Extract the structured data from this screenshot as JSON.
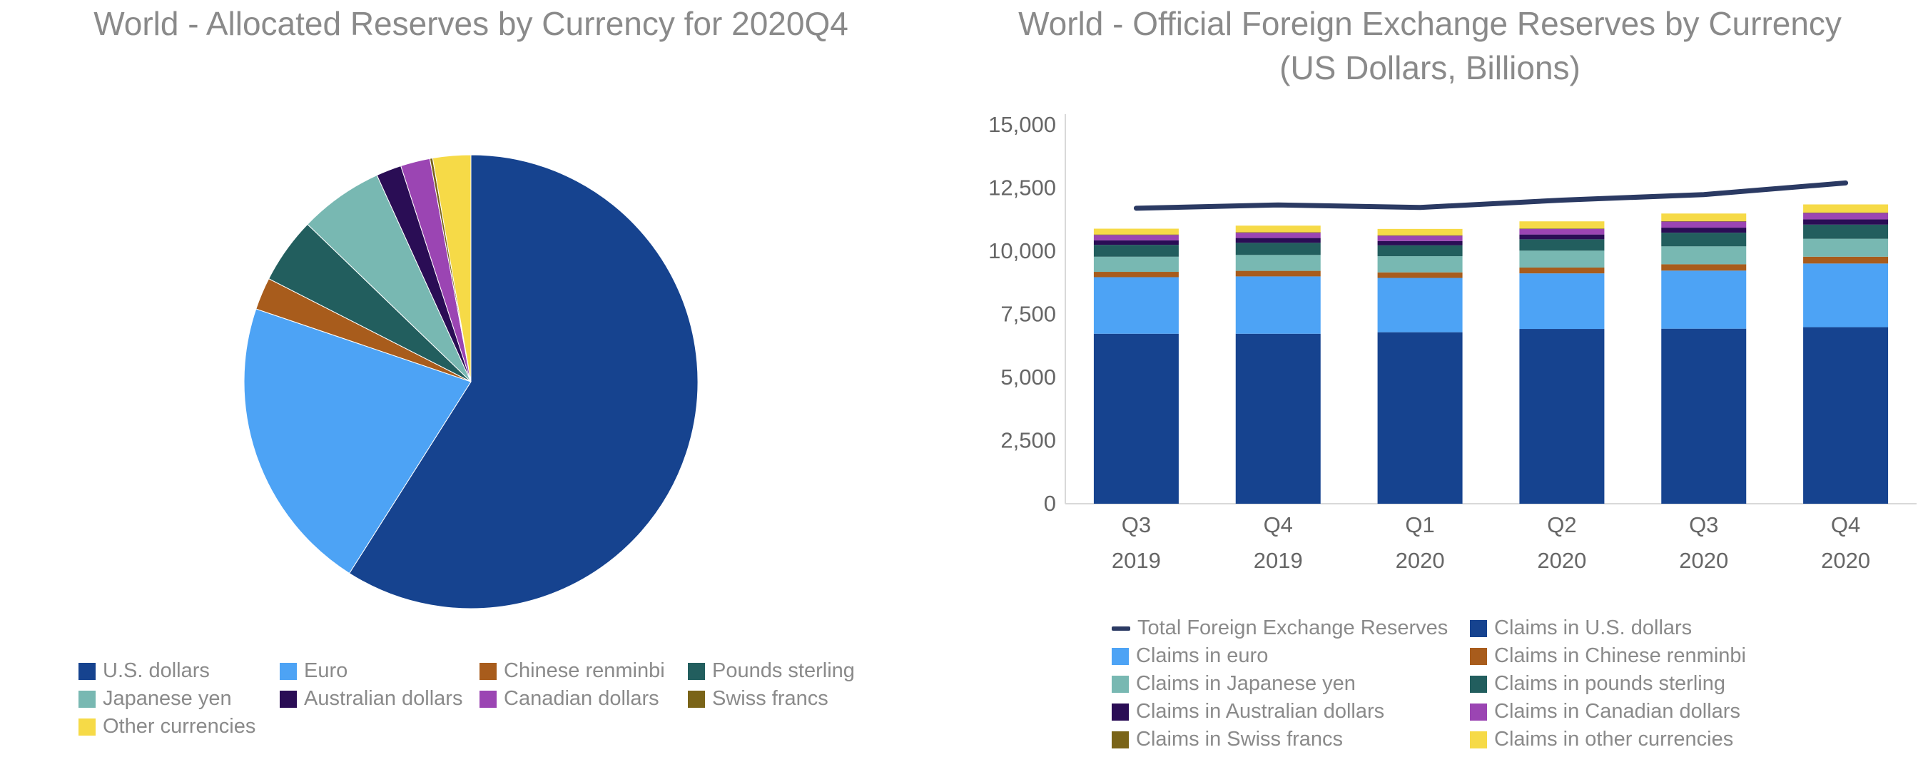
{
  "chart_data": [
    {
      "type": "pie",
      "title": "World - Allocated Reserves by Currency for 2020Q4",
      "categories": [
        "U.S. dollars",
        "Euro",
        "Chinese renminbi",
        "Pounds sterling",
        "Japanese yen",
        "Australian dollars",
        "Canadian dollars",
        "Swiss francs",
        "Other currencies"
      ],
      "values": [
        59.0,
        21.2,
        2.3,
        4.7,
        6.0,
        1.8,
        2.1,
        0.2,
        2.7
      ],
      "colors": [
        "#16438f",
        "#4da3f5",
        "#a85c1c",
        "#225e5e",
        "#78b8b2",
        "#2a0d55",
        "#9b45b3",
        "#7a6418",
        "#f6da47"
      ],
      "legend": "bottom"
    },
    {
      "type": "bar",
      "stacked": true,
      "title": "World - Official Foreign Exchange Reserves by Currency",
      "subtitle": "(US Dollars, Billions)",
      "categories": [
        "Q3\n2019",
        "Q4\n2019",
        "Q1\n2020",
        "Q2\n2020",
        "Q3\n2020",
        "Q4\n2020"
      ],
      "category_lines": [
        [
          "Q3",
          "2019"
        ],
        [
          "Q4",
          "2019"
        ],
        [
          "Q1",
          "2020"
        ],
        [
          "Q2",
          "2020"
        ],
        [
          "Q3",
          "2020"
        ],
        [
          "Q4",
          "2020"
        ]
      ],
      "ylim": [
        0,
        15000
      ],
      "yticks": [
        0,
        2500,
        5000,
        7500,
        10000,
        12500,
        15000
      ],
      "ytick_labels": [
        "0",
        "2,500",
        "5,000",
        "7,500",
        "10,000",
        "12,500",
        "15,000"
      ],
      "grid": false,
      "legend": "bottom",
      "series": [
        {
          "name": "Claims in U.S. dollars",
          "color": "#16438f",
          "values": [
            6730,
            6730,
            6790,
            6920,
            6930,
            6990
          ]
        },
        {
          "name": "Claims in euro",
          "color": "#4da3f5",
          "values": [
            2240,
            2270,
            2150,
            2200,
            2300,
            2520
          ]
        },
        {
          "name": "Claims in Chinese renminbi",
          "color": "#a85c1c",
          "values": [
            210,
            220,
            220,
            230,
            250,
            270
          ]
        },
        {
          "name": "Claims in Japanese yen",
          "color": "#78b8b2",
          "values": [
            600,
            630,
            640,
            670,
            710,
            710
          ]
        },
        {
          "name": "Claims in pounds sterling",
          "color": "#225e5e",
          "values": [
            470,
            480,
            430,
            450,
            540,
            560
          ]
        },
        {
          "name": "Claims in Australian dollars",
          "color": "#2a0d55",
          "values": [
            180,
            190,
            170,
            190,
            200,
            210
          ]
        },
        {
          "name": "Claims in Canadian dollars",
          "color": "#9b45b3",
          "values": [
            210,
            210,
            210,
            220,
            240,
            250
          ]
        },
        {
          "name": "Claims in Swiss francs",
          "color": "#7a6418",
          "values": [
            20,
            20,
            20,
            20,
            20,
            20
          ]
        },
        {
          "name": "Claims in other currencies",
          "color": "#f6da47",
          "values": [
            230,
            260,
            250,
            280,
            300,
            320
          ]
        }
      ],
      "line_series": {
        "name": "Total Foreign Exchange Reserves",
        "color": "#2b3a63",
        "values": [
          11700,
          11830,
          11730,
          12020,
          12240,
          12700
        ]
      }
    }
  ],
  "pie_legend": {
    "items": [
      {
        "label": "U.S. dollars",
        "color": "#16438f"
      },
      {
        "label": "Euro",
        "color": "#4da3f5"
      },
      {
        "label": "Chinese renminbi",
        "color": "#a85c1c"
      },
      {
        "label": "Pounds sterling",
        "color": "#225e5e"
      },
      {
        "label": "Japanese yen",
        "color": "#78b8b2"
      },
      {
        "label": "Australian dollars",
        "color": "#2a0d55"
      },
      {
        "label": "Canadian dollars",
        "color": "#9b45b3"
      },
      {
        "label": "Swiss francs",
        "color": "#7a6418"
      },
      {
        "label": "Other currencies",
        "color": "#f6da47"
      }
    ]
  },
  "bar_legend": {
    "items": [
      {
        "label": "Total Foreign Exchange Reserves",
        "color": "#2b3a63",
        "kind": "line"
      },
      {
        "label": "Claims in U.S. dollars",
        "color": "#16438f",
        "kind": "box"
      },
      {
        "label": "Claims in euro",
        "color": "#4da3f5",
        "kind": "box"
      },
      {
        "label": "Claims in Chinese renminbi",
        "color": "#a85c1c",
        "kind": "box"
      },
      {
        "label": "Claims in Japanese yen",
        "color": "#78b8b2",
        "kind": "box"
      },
      {
        "label": "Claims in pounds sterling",
        "color": "#225e5e",
        "kind": "box"
      },
      {
        "label": "Claims in Australian dollars",
        "color": "#2a0d55",
        "kind": "box"
      },
      {
        "label": "Claims in Canadian dollars",
        "color": "#9b45b3",
        "kind": "box"
      },
      {
        "label": "Claims in Swiss francs",
        "color": "#7a6418",
        "kind": "box"
      },
      {
        "label": "Claims in other currencies",
        "color": "#f6da47",
        "kind": "box"
      }
    ]
  }
}
